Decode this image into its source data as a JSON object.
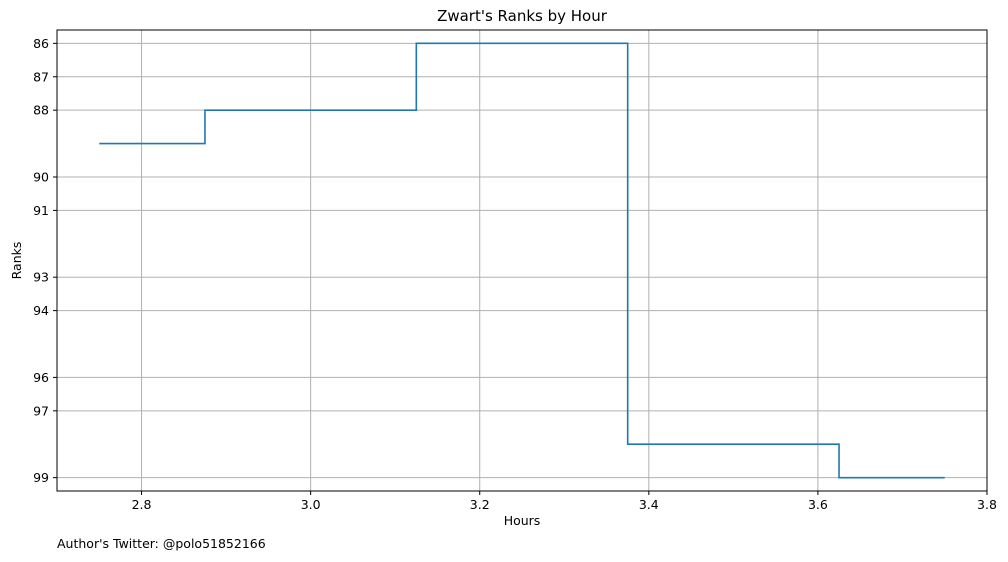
{
  "chart_data": {
    "type": "line",
    "drawstyle": "steps-mid",
    "title": "Zwart's Ranks by Hour",
    "xlabel": "Hours",
    "ylabel": "Ranks",
    "x": [
      2.75,
      3.0,
      3.25,
      3.5,
      3.75
    ],
    "y": [
      89,
      88,
      86,
      98,
      99
    ],
    "xlim": [
      2.7,
      3.8
    ],
    "ylim": [
      99.4,
      85.6
    ],
    "y_inverted": true,
    "xticks": [
      "2.8",
      "3.0",
      "3.2",
      "3.4",
      "3.6",
      "3.8"
    ],
    "yticks": [
      "86",
      "87",
      "88",
      "90",
      "91",
      "93",
      "94",
      "96",
      "97",
      "99"
    ],
    "grid": true,
    "line_color": "#1f77b4",
    "grid_color": "#b0b0b0"
  },
  "footer": {
    "author": "Author's Twitter: @polo51852166"
  }
}
